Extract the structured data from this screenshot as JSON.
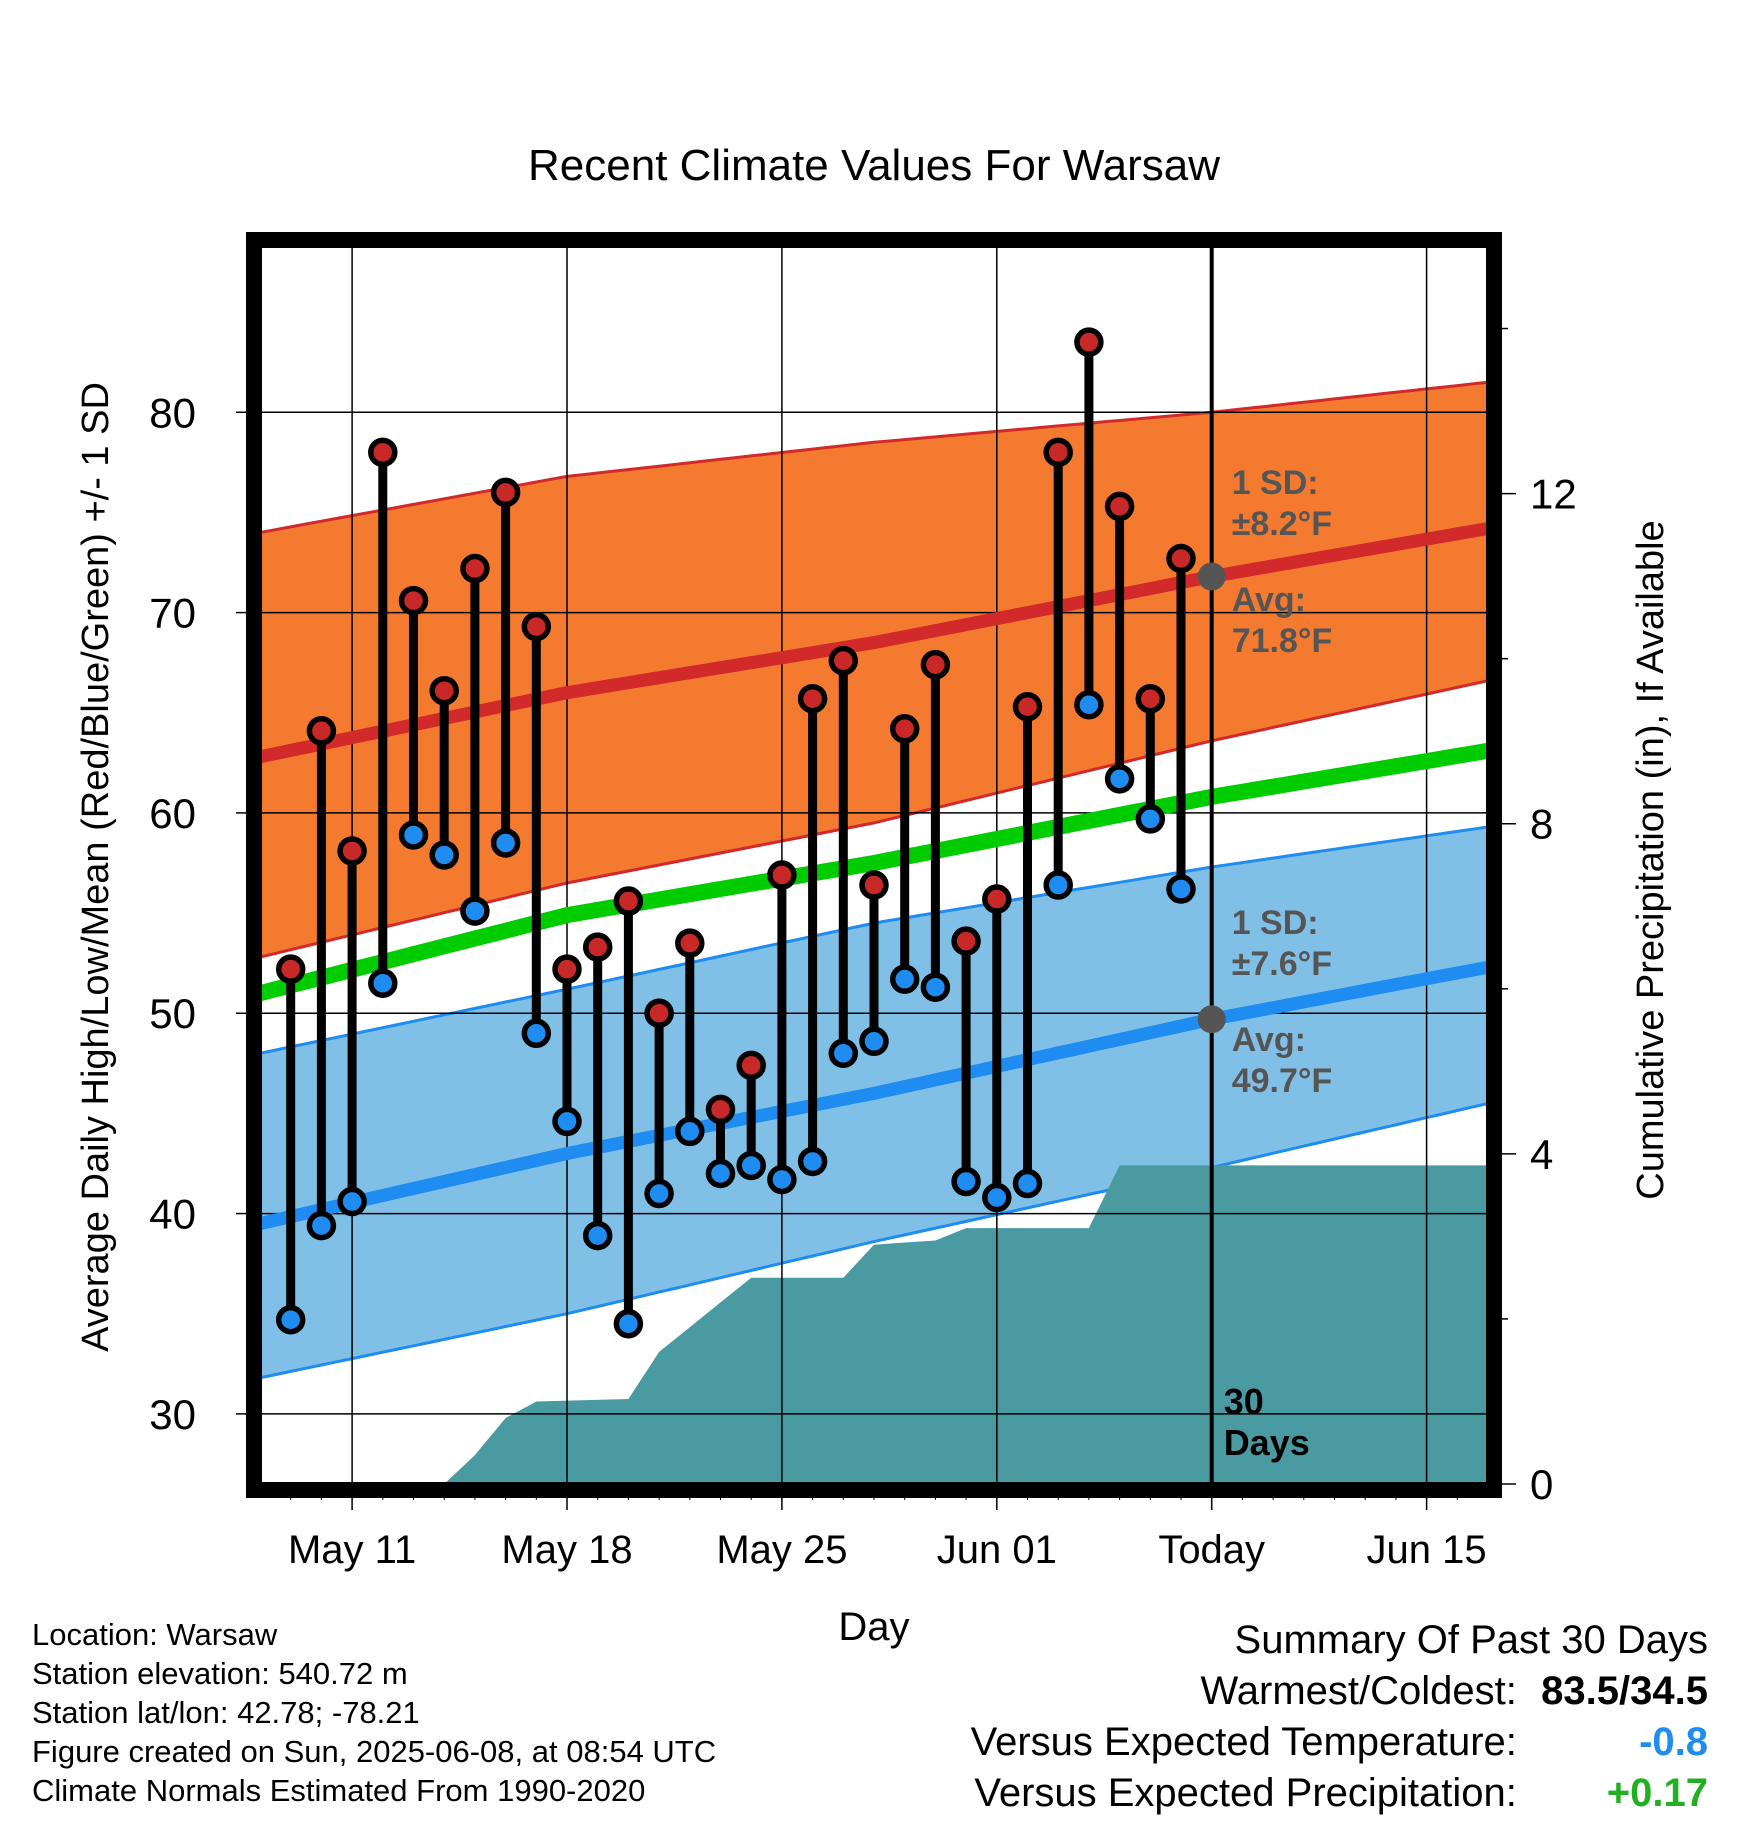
{
  "chart_data": {
    "type": "line",
    "title": "Recent Climate Values For Warsaw",
    "xlabel": "Day",
    "ylabel_left": "Average Daily High/Low/Mean (Red/Blue/Green) +/- 1 SD",
    "ylabel_right": "Cumulative Precipitation (in), If Available",
    "ylim": [
      26.5,
      88.3
    ],
    "y2lim": [
      0,
      15
    ],
    "yticks": [
      30,
      40,
      50,
      60,
      70,
      80
    ],
    "y2ticks": [
      0,
      4,
      8,
      12
    ],
    "xlim": [
      "2025-05-08",
      "2025-06-17"
    ],
    "xticks": [
      {
        "date": "2025-05-11",
        "label": "May 11"
      },
      {
        "date": "2025-05-18",
        "label": "May 18"
      },
      {
        "date": "2025-05-25",
        "label": "May 25"
      },
      {
        "date": "2025-06-01",
        "label": "Jun 01"
      },
      {
        "date": "2025-06-08",
        "label": "Today"
      },
      {
        "date": "2025-06-15",
        "label": "Jun 15"
      }
    ],
    "today": "2025-06-08",
    "grid": true,
    "normals": {
      "dates": [
        "2025-05-08",
        "2025-05-18",
        "2025-05-28",
        "2025-06-08",
        "2025-06-17"
      ],
      "high_avg": [
        62.8,
        66.0,
        68.5,
        71.8,
        74.2
      ],
      "high_upper": [
        74.0,
        76.8,
        78.5,
        80.0,
        81.5
      ],
      "high_lower": [
        52.8,
        56.5,
        59.5,
        63.6,
        66.6
      ],
      "mean_avg": [
        51.0,
        54.9,
        57.5,
        60.8,
        63.1
      ],
      "low_avg": [
        39.5,
        43.0,
        46.0,
        49.7,
        52.3
      ],
      "low_upper": [
        48.0,
        51.2,
        54.5,
        57.3,
        59.3
      ],
      "low_lower": [
        31.8,
        35.0,
        38.6,
        42.3,
        45.5
      ]
    },
    "daily": {
      "dates": [
        "2025-05-09",
        "2025-05-10",
        "2025-05-11",
        "2025-05-12",
        "2025-05-13",
        "2025-05-14",
        "2025-05-15",
        "2025-05-16",
        "2025-05-17",
        "2025-05-18",
        "2025-05-19",
        "2025-05-20",
        "2025-05-21",
        "2025-05-22",
        "2025-05-23",
        "2025-05-24",
        "2025-05-25",
        "2025-05-26",
        "2025-05-27",
        "2025-05-28",
        "2025-05-29",
        "2025-05-30",
        "2025-05-31",
        "2025-06-01",
        "2025-06-02",
        "2025-06-03",
        "2025-06-04",
        "2025-06-05",
        "2025-06-06",
        "2025-06-07"
      ],
      "highs": [
        52.2,
        64.1,
        58.1,
        78.0,
        70.6,
        66.1,
        72.2,
        76.0,
        69.3,
        52.2,
        53.3,
        55.6,
        50.0,
        53.5,
        45.2,
        47.4,
        56.9,
        65.7,
        67.6,
        56.4,
        64.2,
        67.4,
        53.6,
        55.7,
        65.3,
        78.0,
        83.5,
        75.3,
        65.7,
        72.7
      ],
      "lows": [
        34.7,
        39.4,
        40.6,
        51.5,
        58.9,
        57.9,
        55.1,
        58.5,
        49.0,
        44.6,
        38.9,
        34.5,
        41.0,
        44.1,
        42.0,
        42.4,
        41.7,
        42.6,
        48.0,
        48.6,
        51.7,
        51.3,
        41.6,
        40.8,
        41.5,
        56.4,
        65.4,
        61.7,
        59.7,
        56.2
      ]
    },
    "precip": {
      "dates": [
        "2025-05-08",
        "2025-05-14",
        "2025-05-15",
        "2025-05-16",
        "2025-05-17",
        "2025-05-20",
        "2025-05-21",
        "2025-05-22",
        "2025-05-23",
        "2025-05-24",
        "2025-05-27",
        "2025-05-28",
        "2025-05-30",
        "2025-05-31",
        "2025-06-04",
        "2025-06-05",
        "2025-06-17"
      ],
      "values": [
        0,
        0,
        0.35,
        0.8,
        1.0,
        1.03,
        1.6,
        1.9,
        2.2,
        2.5,
        2.5,
        2.9,
        2.95,
        3.1,
        3.1,
        3.86,
        3.86
      ]
    },
    "annotations": {
      "high_sd": "1 SD:",
      "high_sd_val": "±8.2°F",
      "high_avg_label": "Avg:",
      "high_avg_val": "71.8°F",
      "low_sd": "1 SD:",
      "low_sd_val": "±7.6°F",
      "low_avg_label": "Avg:",
      "low_avg_val": "49.7°F",
      "days_num": "30",
      "days_word": "Days"
    },
    "colors": {
      "high_band": "#f47a30",
      "high_line": "#d22a2a",
      "low_band": "#80c0e6",
      "low_line": "#1e8cf0",
      "mean_line": "#00cc00",
      "precip": "#4a9aa2",
      "high_marker": "#c82828",
      "low_marker": "#1e8cf0",
      "annotation": "#555555"
    }
  },
  "footer": {
    "location": "Location: Warsaw",
    "elevation": "Station elevation: 540.72 m",
    "latlon": "Station lat/lon: 42.78; -78.21",
    "created": "Figure created on Sun, 2025-06-08, at 08:54 UTC",
    "normals": "Climate Normals Estimated From 1990-2020"
  },
  "summary": {
    "heading": "Summary Of Past 30 Days",
    "warm_label": "Warmest/Coldest:",
    "warm_value": "83.5/34.5",
    "temp_label": "Versus Expected Temperature:",
    "temp_value": "-0.8",
    "temp_color": "#1e8cf0",
    "precip_label": "Versus Expected Precipitation:",
    "precip_value": "+0.17",
    "precip_color": "#22b022"
  }
}
